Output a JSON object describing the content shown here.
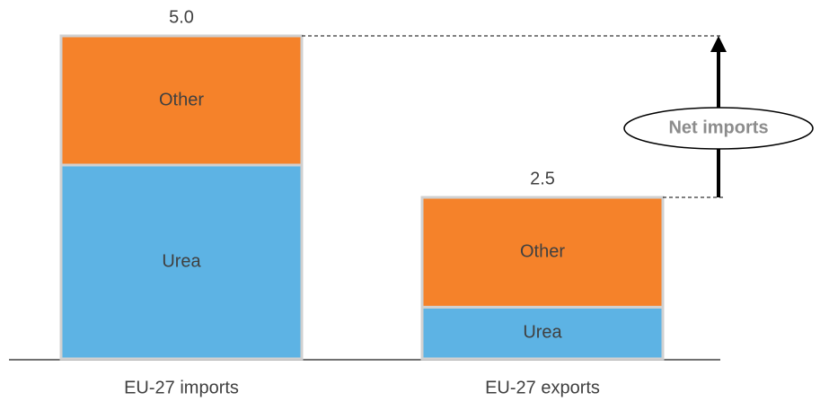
{
  "chart_data": {
    "type": "stacked_bar",
    "categories": [
      "EU-27 imports",
      "EU-27 exports"
    ],
    "series": [
      {
        "name": "Urea",
        "color": "#5db3e4",
        "values": [
          3.0,
          0.8
        ]
      },
      {
        "name": "Other",
        "color": "#f5822a",
        "values": [
          2.0,
          1.7
        ]
      }
    ],
    "totals": {
      "values": [
        5,
        2.5
      ],
      "value_labels": [
        "5.0",
        "2.5"
      ]
    },
    "annotation": "Net imports"
  }
}
